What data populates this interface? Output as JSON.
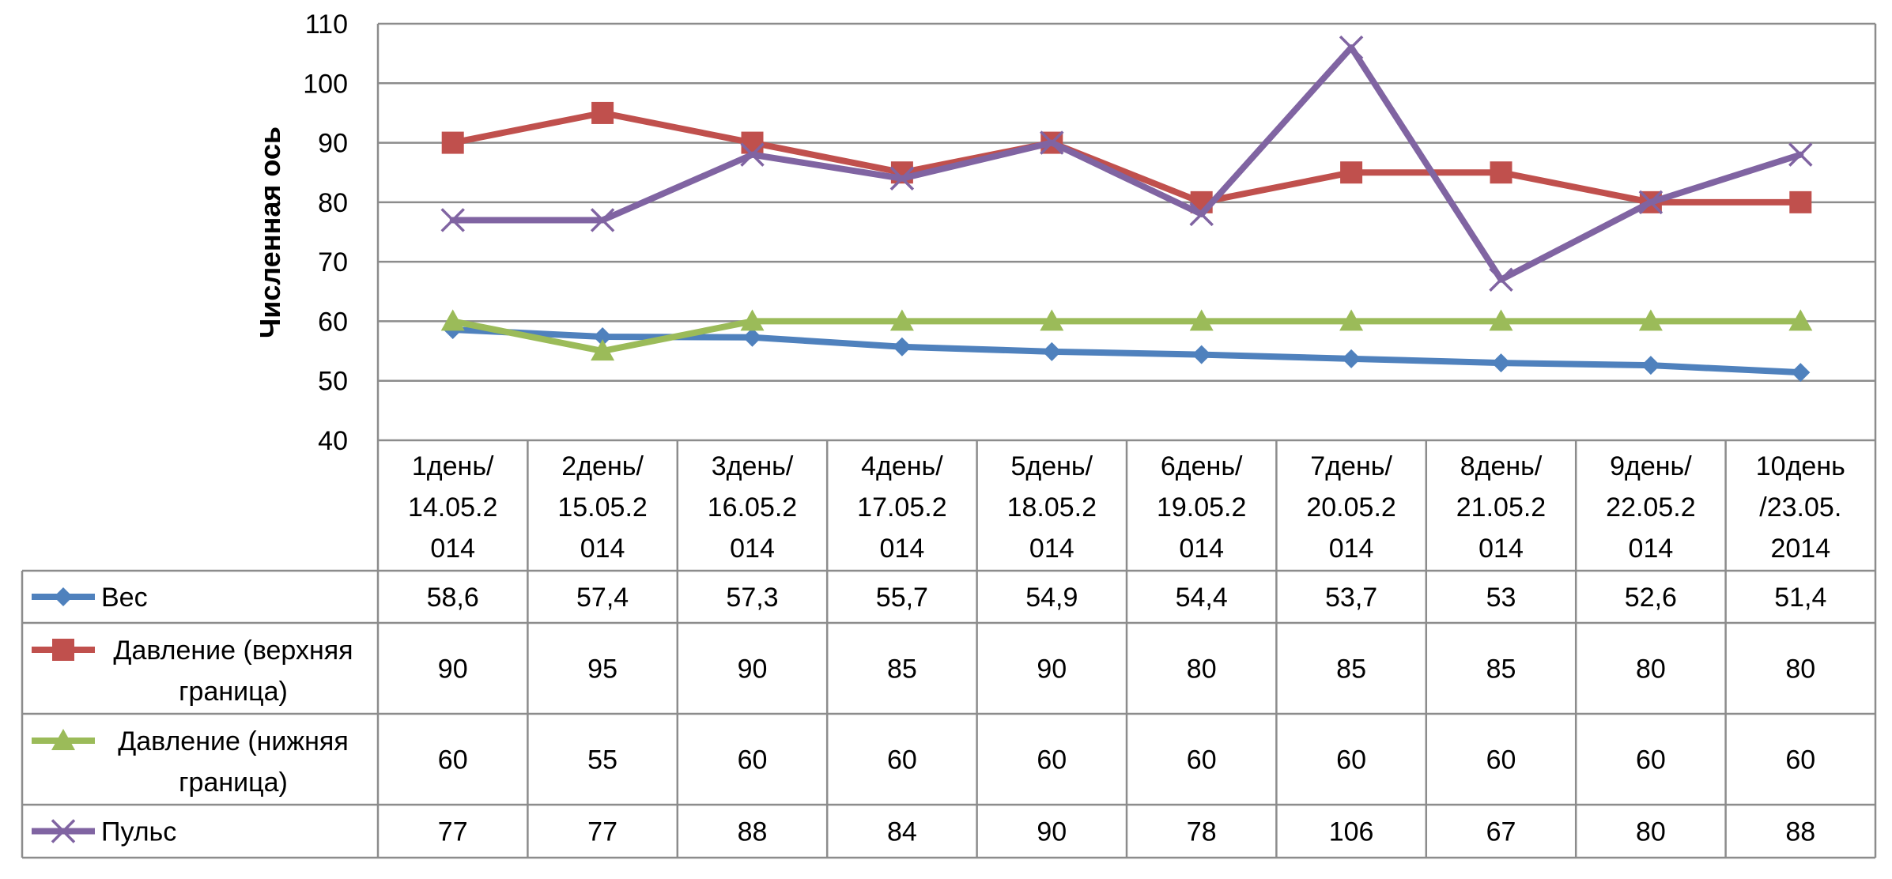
{
  "chart_data": {
    "type": "line",
    "title": "",
    "xlabel": "",
    "ylabel": "Численная ось",
    "ylim": [
      40,
      110
    ],
    "yticks": [
      40,
      50,
      60,
      70,
      80,
      90,
      100,
      110
    ],
    "grid": true,
    "legend": "data-table-left",
    "categories": [
      [
        "1день/",
        "14.05.2",
        "014"
      ],
      [
        "2день/",
        "15.05.2",
        "014"
      ],
      [
        "3день/",
        "16.05.2",
        "014"
      ],
      [
        "4день/",
        "17.05.2",
        "014"
      ],
      [
        "5день/",
        "18.05.2",
        "014"
      ],
      [
        "6день/",
        "19.05.2",
        "014"
      ],
      [
        "7день/",
        "20.05.2",
        "014"
      ],
      [
        "8день/",
        "21.05.2",
        "014"
      ],
      [
        "9день/",
        "22.05.2",
        "014"
      ],
      [
        "10день",
        "/23.05.",
        "2014"
      ]
    ],
    "series": [
      {
        "name": "Вес",
        "name_lines": [
          "Вес"
        ],
        "color": "#4F81BD",
        "marker": "diamond",
        "values": [
          58.6,
          57.4,
          57.3,
          55.7,
          54.9,
          54.4,
          53.7,
          53,
          52.6,
          51.4
        ],
        "labels": [
          "58,6",
          "57,4",
          "57,3",
          "55,7",
          "54,9",
          "54,4",
          "53,7",
          "53",
          "52,6",
          "51,4"
        ]
      },
      {
        "name": "Давление (верхняя граница)",
        "name_lines": [
          "Давление (верхняя",
          "граница)"
        ],
        "color": "#C0504D",
        "marker": "square",
        "values": [
          90,
          95,
          90,
          85,
          90,
          80,
          85,
          85,
          80,
          80
        ],
        "labels": [
          "90",
          "95",
          "90",
          "85",
          "90",
          "80",
          "85",
          "85",
          "80",
          "80"
        ]
      },
      {
        "name": "Давление (нижняя граница)",
        "name_lines": [
          "Давление (нижняя",
          "граница)"
        ],
        "color": "#9BBB59",
        "marker": "triangle",
        "values": [
          60,
          55,
          60,
          60,
          60,
          60,
          60,
          60,
          60,
          60
        ],
        "labels": [
          "60",
          "55",
          "60",
          "60",
          "60",
          "60",
          "60",
          "60",
          "60",
          "60"
        ]
      },
      {
        "name": "Пульс",
        "name_lines": [
          "Пульс"
        ],
        "color": "#8064A2",
        "marker": "x",
        "values": [
          77,
          77,
          88,
          84,
          90,
          78,
          106,
          67,
          80,
          88
        ],
        "labels": [
          "77",
          "77",
          "88",
          "84",
          "90",
          "78",
          "106",
          "67",
          "80",
          "88"
        ]
      }
    ]
  }
}
